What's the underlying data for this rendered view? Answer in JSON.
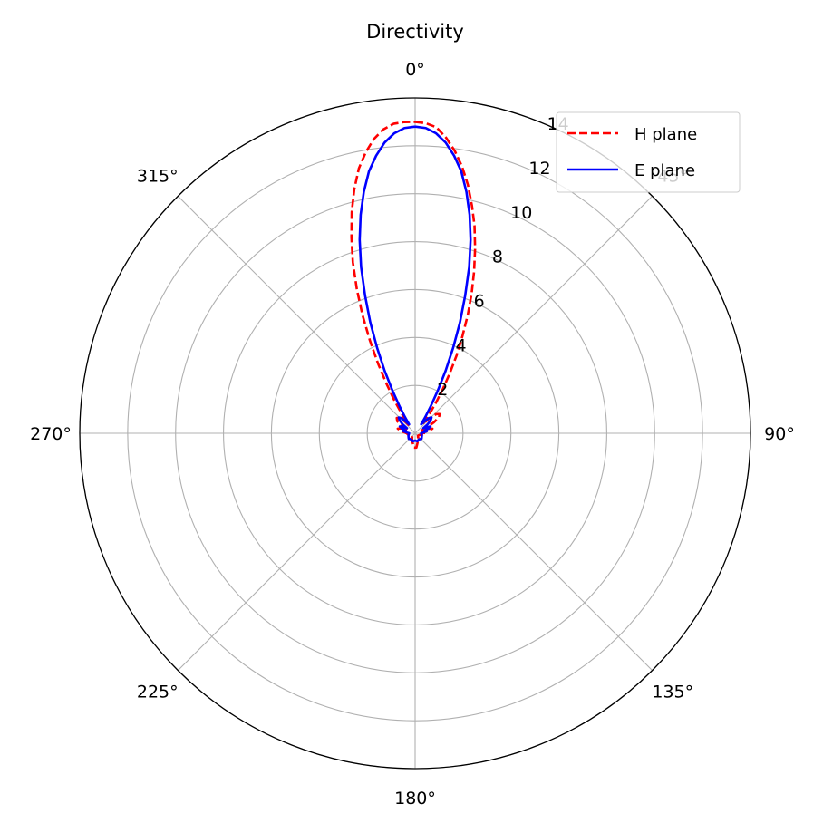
{
  "chart_data": {
    "type": "polar-line",
    "title": "Directivity",
    "theta_zero_location": "top",
    "theta_direction": "clockwise",
    "rlim": [
      0,
      14
    ],
    "grid": true,
    "angular_ticks": [
      {
        "deg": 0,
        "label": "0°"
      },
      {
        "deg": 45,
        "label": "45°"
      },
      {
        "deg": 90,
        "label": "90°"
      },
      {
        "deg": 135,
        "label": "135°"
      },
      {
        "deg": 180,
        "label": "180°"
      },
      {
        "deg": 225,
        "label": "225°"
      },
      {
        "deg": 270,
        "label": "270°"
      },
      {
        "deg": 315,
        "label": "315°"
      }
    ],
    "radial_ticks": [
      {
        "value": 2,
        "label": "2"
      },
      {
        "value": 4,
        "label": "4"
      },
      {
        "value": 6,
        "label": "6"
      },
      {
        "value": 8,
        "label": "8"
      },
      {
        "value": 10,
        "label": "10"
      },
      {
        "value": 12,
        "label": "12"
      },
      {
        "value": 14,
        "label": "14"
      }
    ],
    "legend_position": "top-right",
    "series": [
      {
        "name": "H plane",
        "color": "#ff0000",
        "dash": "dashed",
        "points": [
          [
            0,
            13.0
          ],
          [
            2,
            12.95
          ],
          [
            4,
            12.8
          ],
          [
            6,
            12.4
          ],
          [
            8,
            11.9
          ],
          [
            10,
            11.3
          ],
          [
            12,
            10.6
          ],
          [
            14,
            9.8
          ],
          [
            16,
            9.0
          ],
          [
            18,
            8.1
          ],
          [
            20,
            7.2
          ],
          [
            22,
            6.3
          ],
          [
            24,
            5.4
          ],
          [
            26,
            4.5
          ],
          [
            28,
            3.7
          ],
          [
            30,
            2.9
          ],
          [
            32,
            2.2
          ],
          [
            34,
            1.6
          ],
          [
            36,
            1.1
          ],
          [
            38,
            0.7
          ],
          [
            40,
            0.5
          ],
          [
            44,
            0.9
          ],
          [
            48,
            1.2
          ],
          [
            52,
            1.3
          ],
          [
            56,
            1.2
          ],
          [
            60,
            0.9
          ],
          [
            64,
            0.5
          ],
          [
            66,
            0.3
          ],
          [
            70,
            0.55
          ],
          [
            75,
            0.75
          ],
          [
            80,
            0.55
          ],
          [
            85,
            0.3
          ],
          [
            90,
            0.45
          ],
          [
            100,
            0.3
          ],
          [
            110,
            0.2
          ],
          [
            130,
            0.15
          ],
          [
            150,
            0.25
          ],
          [
            165,
            0.4
          ],
          [
            175,
            0.6
          ],
          [
            180,
            0.6
          ],
          [
            185,
            0.6
          ],
          [
            195,
            0.4
          ],
          [
            210,
            0.25
          ],
          [
            230,
            0.15
          ],
          [
            250,
            0.2
          ],
          [
            260,
            0.3
          ],
          [
            270,
            0.35
          ],
          [
            278,
            0.55
          ],
          [
            285,
            0.75
          ],
          [
            290,
            0.6
          ],
          [
            294,
            0.35
          ],
          [
            298,
            0.6
          ],
          [
            304,
            0.9
          ],
          [
            310,
            1.0
          ],
          [
            316,
            0.9
          ],
          [
            320,
            0.6
          ],
          [
            322,
            0.45
          ],
          [
            324,
            0.7
          ],
          [
            326,
            1.1
          ],
          [
            328,
            1.7
          ],
          [
            330,
            2.4
          ],
          [
            332,
            3.3
          ],
          [
            334,
            4.3
          ],
          [
            336,
            5.4
          ],
          [
            338,
            6.5
          ],
          [
            340,
            7.6
          ],
          [
            342,
            8.6
          ],
          [
            344,
            9.6
          ],
          [
            346,
            10.5
          ],
          [
            348,
            11.3
          ],
          [
            350,
            11.9
          ],
          [
            352,
            12.4
          ],
          [
            354,
            12.75
          ],
          [
            356,
            12.95
          ],
          [
            358,
            13.0
          ],
          [
            360,
            13.0
          ]
        ]
      },
      {
        "name": "E plane",
        "color": "#0000ff",
        "dash": "solid",
        "points": [
          [
            0,
            12.8
          ],
          [
            2,
            12.75
          ],
          [
            4,
            12.55
          ],
          [
            6,
            12.2
          ],
          [
            8,
            11.7
          ],
          [
            10,
            11.1
          ],
          [
            12,
            10.3
          ],
          [
            14,
            9.4
          ],
          [
            16,
            8.4
          ],
          [
            18,
            7.3
          ],
          [
            20,
            6.1
          ],
          [
            22,
            5.0
          ],
          [
            24,
            3.9
          ],
          [
            26,
            2.9
          ],
          [
            28,
            2.0
          ],
          [
            30,
            1.3
          ],
          [
            32,
            0.8
          ],
          [
            34,
            0.45
          ],
          [
            38,
            0.6
          ],
          [
            42,
            0.85
          ],
          [
            46,
            0.95
          ],
          [
            50,
            0.85
          ],
          [
            54,
            0.65
          ],
          [
            58,
            0.4
          ],
          [
            62,
            0.55
          ],
          [
            66,
            0.7
          ],
          [
            70,
            0.6
          ],
          [
            75,
            0.4
          ],
          [
            80,
            0.5
          ],
          [
            85,
            0.35
          ],
          [
            90,
            0.25
          ],
          [
            110,
            0.3
          ],
          [
            130,
            0.35
          ],
          [
            150,
            0.3
          ],
          [
            165,
            0.35
          ],
          [
            180,
            0.3
          ],
          [
            195,
            0.35
          ],
          [
            210,
            0.3
          ],
          [
            230,
            0.35
          ],
          [
            250,
            0.3
          ],
          [
            270,
            0.25
          ],
          [
            275,
            0.35
          ],
          [
            280,
            0.5
          ],
          [
            285,
            0.4
          ],
          [
            290,
            0.6
          ],
          [
            294,
            0.7
          ],
          [
            298,
            0.55
          ],
          [
            302,
            0.4
          ],
          [
            306,
            0.65
          ],
          [
            310,
            0.85
          ],
          [
            314,
            0.95
          ],
          [
            318,
            0.85
          ],
          [
            322,
            0.6
          ],
          [
            326,
            0.45
          ],
          [
            328,
            0.8
          ],
          [
            330,
            1.3
          ],
          [
            332,
            2.0
          ],
          [
            334,
            2.9
          ],
          [
            336,
            3.9
          ],
          [
            338,
            5.0
          ],
          [
            340,
            6.1
          ],
          [
            342,
            7.3
          ],
          [
            344,
            8.4
          ],
          [
            346,
            9.4
          ],
          [
            348,
            10.3
          ],
          [
            350,
            11.1
          ],
          [
            352,
            11.7
          ],
          [
            354,
            12.2
          ],
          [
            356,
            12.55
          ],
          [
            358,
            12.75
          ],
          [
            360,
            12.8
          ]
        ]
      }
    ]
  }
}
